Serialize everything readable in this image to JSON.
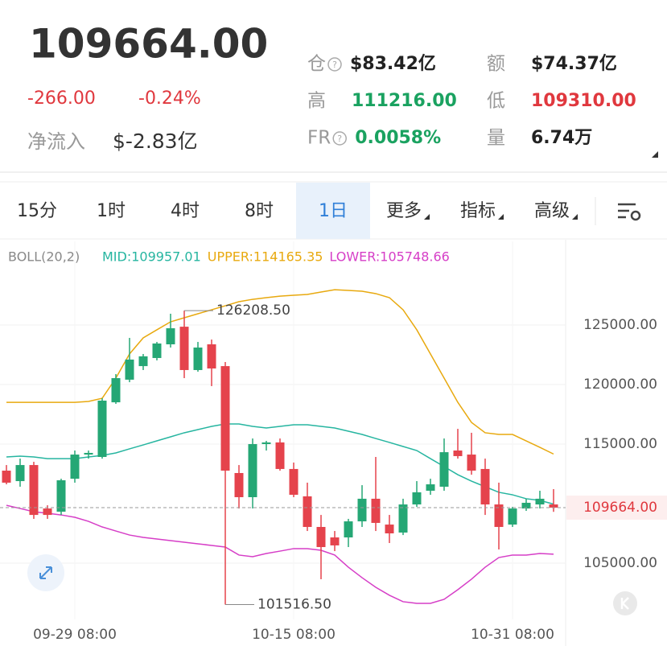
{
  "header": {
    "price": "109664.00",
    "change": "-266.00",
    "change_pct": "-0.24%",
    "net_inflow_label": "净流入",
    "net_inflow": "$-2.83亿",
    "stats": [
      {
        "label": "仓",
        "help": true,
        "value": "$83.42亿",
        "color": "#222222"
      },
      {
        "label": "额",
        "help": false,
        "value": "$74.37亿",
        "color": "#222222"
      },
      {
        "label": "高",
        "help": false,
        "value": "111216.00",
        "color": "#1aa260"
      },
      {
        "label": "低",
        "help": false,
        "value": "109310.00",
        "color": "#e0383e"
      },
      {
        "label": "FR",
        "help": true,
        "value": "0.0058%",
        "color": "#1aa260"
      },
      {
        "label": "量",
        "help": false,
        "value": "6.74万",
        "color": "#222222"
      }
    ]
  },
  "tabs": {
    "items": [
      {
        "label": "15分",
        "dropdown": false
      },
      {
        "label": "1时",
        "dropdown": false
      },
      {
        "label": "4时",
        "dropdown": false
      },
      {
        "label": "8时",
        "dropdown": false
      },
      {
        "label": "1日",
        "dropdown": false
      },
      {
        "label": "更多",
        "dropdown": true
      },
      {
        "label": "指标",
        "dropdown": true
      },
      {
        "label": "高级",
        "dropdown": true
      }
    ],
    "selected": 4
  },
  "chart_data": {
    "type": "candlestick",
    "indicator": "BOLL(20,2)",
    "categories": [
      null,
      null,
      null,
      null,
      null,
      "09-29 08:00",
      null,
      null,
      null,
      null,
      null,
      null,
      null,
      null,
      null,
      null,
      null,
      null,
      null,
      null,
      null,
      "10-15 08:00",
      null,
      null,
      null,
      null,
      null,
      null,
      null,
      null,
      null,
      null,
      null,
      null,
      null,
      null,
      null,
      "10-31 08:00",
      null,
      null,
      null
    ],
    "up_color": "#25a775",
    "down_color": "#e5434c",
    "open": [
      112770,
      111890,
      113240,
      109590,
      109320,
      112090,
      114120,
      113920,
      118510,
      120410,
      121550,
      122230,
      123380,
      124860,
      121220,
      123380,
      121550,
      112570,
      110540,
      115000,
      115140,
      112910,
      110610,
      108040,
      107160,
      107160,
      108510,
      110410,
      108240,
      107570,
      109930,
      111080,
      111420,
      114460,
      114120,
      112910,
      109930,
      108240,
      109590,
      109930,
      109930
    ],
    "high": [
      113240,
      113780,
      113510,
      109860,
      112090,
      114460,
      114460,
      118850,
      120880,
      123920,
      122570,
      123580,
      125950,
      126208.5,
      123580,
      123780,
      121890,
      113240,
      115470,
      115270,
      115470,
      113450,
      111760,
      109050,
      107700,
      108720,
      111550,
      113920,
      109050,
      110410,
      111890,
      112090,
      115470,
      116280,
      115950,
      113780,
      111760,
      109730,
      110410,
      111080,
      111216
    ],
    "low": [
      111620,
      111420,
      108720,
      108720,
      109050,
      111760,
      113780,
      113780,
      118380,
      120200,
      121220,
      122030,
      123110,
      120540,
      121080,
      119870,
      101516.5,
      109590,
      109590,
      114460,
      112770,
      110540,
      107700,
      103650,
      106010,
      106350,
      108040,
      107700,
      106690,
      107360,
      109730,
      110740,
      111080,
      113780,
      112430,
      109050,
      106150,
      108040,
      109390,
      109590,
      109310
    ],
    "close": [
      111760,
      113240,
      109050,
      109050,
      111960,
      114120,
      114260,
      118650,
      120540,
      122100,
      122370,
      123450,
      124730,
      121220,
      123110,
      121350,
      112770,
      110540,
      115000,
      115140,
      112910,
      110740,
      108040,
      106350,
      106490,
      108510,
      110410,
      108380,
      107500,
      109930,
      110950,
      111620,
      114320,
      113990,
      112770,
      109930,
      108040,
      109590,
      110070,
      110410,
      109664
    ],
    "series": [
      {
        "name": "MID:109957.01",
        "color": "#26b5a0",
        "values": [
          113920,
          113990,
          113920,
          113780,
          113780,
          113780,
          113920,
          114050,
          114260,
          114600,
          114930,
          115270,
          115610,
          115950,
          116220,
          116490,
          116690,
          116690,
          116490,
          116350,
          116490,
          116620,
          116620,
          116490,
          116350,
          116080,
          115810,
          115470,
          115140,
          114800,
          114460,
          113780,
          113110,
          112430,
          111890,
          111420,
          110950,
          110740,
          110410,
          110270,
          109957.01
        ]
      },
      {
        "name": "UPPER:114165.35",
        "color": "#e8a90f",
        "values": [
          118510,
          118510,
          118510,
          118510,
          118510,
          118510,
          118580,
          118850,
          120540,
          122570,
          123920,
          124600,
          125270,
          125610,
          125950,
          126280,
          126620,
          126960,
          127160,
          127300,
          127430,
          127500,
          127570,
          127770,
          127970,
          127910,
          127840,
          127640,
          127300,
          126280,
          124600,
          122570,
          120540,
          118510,
          116820,
          115950,
          115810,
          115810,
          115270,
          114730,
          114165.35
        ]
      },
      {
        "name": "LOWER:105748.66",
        "color": "#d63ec7",
        "values": [
          109860,
          109590,
          109320,
          109190,
          109050,
          108850,
          108510,
          108040,
          107700,
          107360,
          107160,
          107030,
          106890,
          106760,
          106620,
          106490,
          106350,
          105680,
          105540,
          105810,
          106010,
          106220,
          106220,
          106080,
          105680,
          104660,
          103780,
          102970,
          102300,
          101760,
          101620,
          101620,
          101960,
          102770,
          103650,
          104660,
          105470,
          105680,
          105680,
          105810,
          105748.66
        ]
      }
    ],
    "ylim": [
      100270,
      132030
    ],
    "yticks": [
      {
        "value": 105000,
        "label": "105000.00"
      },
      {
        "value": 115000,
        "label": "115000.00"
      },
      {
        "value": 120000,
        "label": "120000.00"
      },
      {
        "value": 125000,
        "label": "125000.00"
      }
    ],
    "grid": true,
    "current_price": {
      "value": 109664,
      "label": "109664.00"
    },
    "annotations": [
      {
        "index": 13,
        "value": 126208.5,
        "label": "126208.50"
      },
      {
        "index": 16,
        "value": 101516.5,
        "label": "101516.50"
      }
    ]
  }
}
